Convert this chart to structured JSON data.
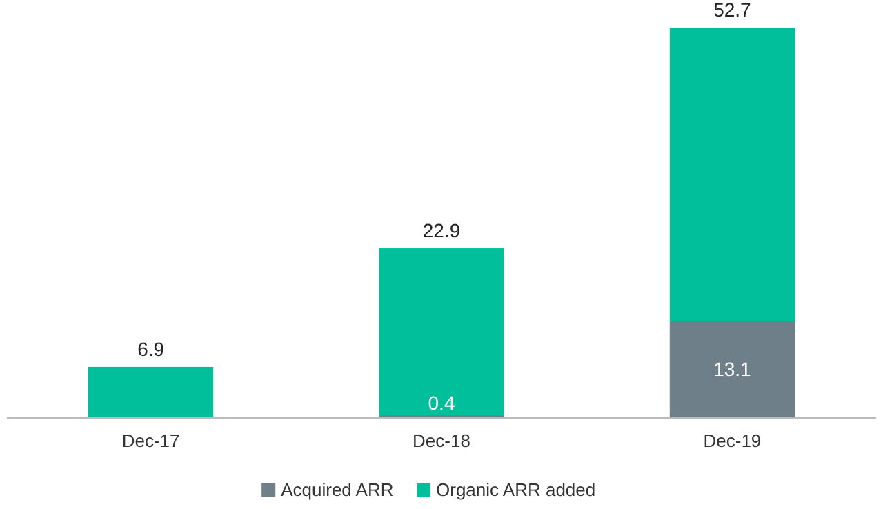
{
  "chart_data": {
    "type": "bar",
    "stacked": true,
    "categories": [
      "Dec-17",
      "Dec-18",
      "Dec-19"
    ],
    "series": [
      {
        "name": "Acquired ARR",
        "color": "#6e7f8a",
        "values": [
          0,
          0.4,
          13.1
        ],
        "value_labels": [
          null,
          "0.4",
          "13.1"
        ]
      },
      {
        "name": "Organic ARR added",
        "color": "#00bf9a",
        "values": [
          6.9,
          22.5,
          39.6
        ]
      }
    ],
    "totals": [
      "6.9",
      "22.9",
      "52.7"
    ],
    "legend": "bottom"
  }
}
